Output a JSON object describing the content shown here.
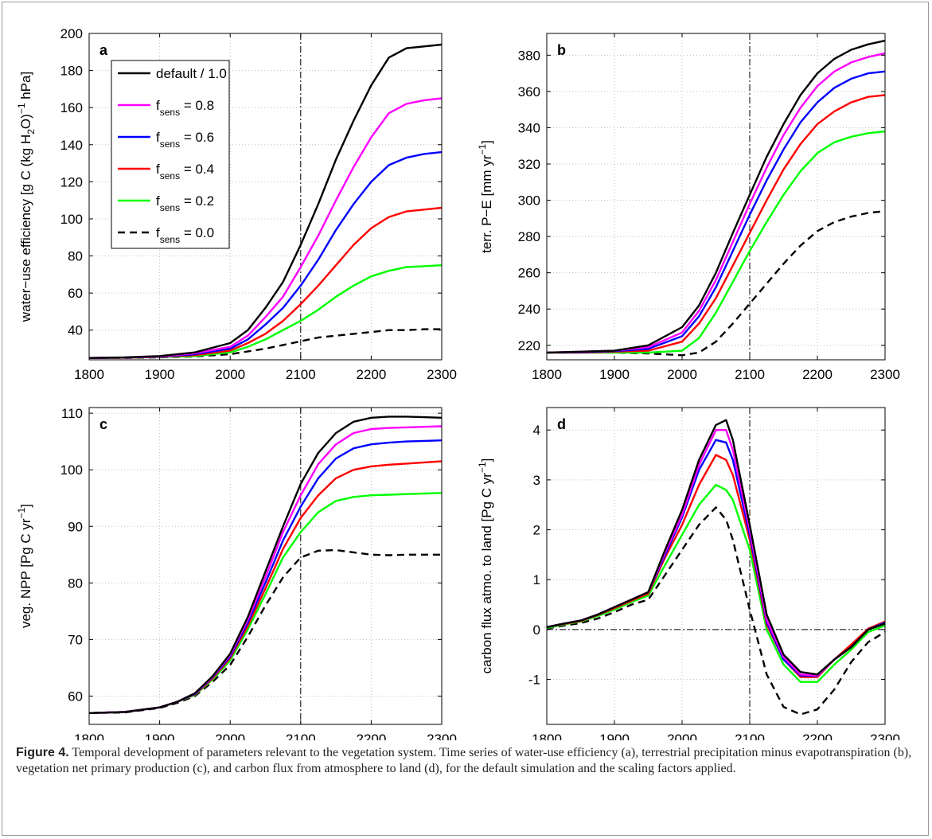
{
  "figure": {
    "caption_label": "Figure 4.",
    "caption_text": "Temporal development of parameters relevant to the vegetation system. Time series of water-use efficiency (a), terrestrial precipitation minus evapotranspiration (b), vegetation net primary production (c), and carbon flux from atmosphere to land (d), for the default simulation and the scaling factors applied."
  },
  "legend": {
    "placement": "top-left of panel a",
    "entries": [
      {
        "label": "default / 1.0",
        "color": "#000000",
        "dash": false
      },
      {
        "label": "f",
        "sub": "sens",
        "rest": " = 0.8",
        "color": "#ff00ff",
        "dash": false
      },
      {
        "label": "f",
        "sub": "sens",
        "rest": " = 0.6",
        "color": "#0000ff",
        "dash": false
      },
      {
        "label": "f",
        "sub": "sens",
        "rest": " = 0.4",
        "color": "#ff0000",
        "dash": false
      },
      {
        "label": "f",
        "sub": "sens",
        "rest": " = 0.2",
        "color": "#00ff00",
        "dash": false
      },
      {
        "label": "f",
        "sub": "sens",
        "rest": " = 0.0",
        "color": "#000000",
        "dash": true
      }
    ]
  },
  "chart_data": [
    {
      "type": "line",
      "panel_label": "a",
      "ylabel_parts": [
        "water−use efficiency [g C (kg H",
        "2",
        "O)",
        "−1",
        " hPa]"
      ],
      "xlim": [
        1800,
        2300
      ],
      "ylim": [
        24,
        200
      ],
      "xticks": [
        1800,
        1900,
        2000,
        2100,
        2200,
        2300
      ],
      "yticks": [
        40,
        60,
        80,
        100,
        120,
        140,
        160,
        180,
        200
      ],
      "grid": true,
      "vline_x": 2100,
      "x": [
        1800,
        1850,
        1900,
        1950,
        2000,
        2025,
        2050,
        2075,
        2100,
        2125,
        2150,
        2175,
        2200,
        2225,
        2250,
        2275,
        2300
      ],
      "series": [
        {
          "name": "default / 1.0",
          "values": [
            25,
            25.3,
            26,
            28,
            33,
            40,
            52,
            66,
            86,
            108,
            132,
            153,
            172,
            187,
            192,
            193,
            194
          ]
        },
        {
          "name": "f sens = 0.8",
          "values": [
            25,
            25.2,
            25.8,
            27.5,
            31,
            37,
            47,
            58,
            74,
            91,
            110,
            128,
            144,
            157,
            162,
            164,
            165
          ]
        },
        {
          "name": "f sens = 0.6",
          "values": [
            25,
            25.2,
            25.7,
            27,
            30,
            35,
            43,
            52,
            64,
            78,
            94,
            108,
            120,
            129,
            133,
            135,
            136
          ]
        },
        {
          "name": "f sens = 0.4",
          "values": [
            25,
            25.1,
            25.6,
            26.5,
            29,
            33,
            38,
            45,
            54,
            64,
            75,
            86,
            95,
            101,
            104,
            105,
            106
          ]
        },
        {
          "name": "f sens = 0.2",
          "values": [
            25,
            25.1,
            25.5,
            26,
            28,
            31,
            35,
            40,
            45,
            51,
            58,
            64,
            69,
            72,
            74,
            74.5,
            75
          ]
        },
        {
          "name": "f sens = 0.0",
          "values": [
            25,
            25,
            25.3,
            25.8,
            27,
            28.5,
            30,
            32,
            34,
            36,
            37,
            38,
            39,
            40,
            40,
            40.5,
            40.5
          ]
        }
      ]
    },
    {
      "type": "line",
      "panel_label": "b",
      "ylabel_parts": [
        "terr. P−E [mm yr",
        "−1",
        "]"
      ],
      "xlim": [
        1800,
        2300
      ],
      "ylim": [
        212,
        392
      ],
      "xticks": [
        1800,
        1900,
        2000,
        2100,
        2200,
        2300
      ],
      "yticks": [
        220,
        240,
        260,
        280,
        300,
        320,
        340,
        360,
        380
      ],
      "grid": true,
      "vline_x": 2100,
      "x": [
        1800,
        1850,
        1900,
        1950,
        2000,
        2025,
        2050,
        2075,
        2100,
        2125,
        2150,
        2175,
        2200,
        2225,
        2250,
        2275,
        2300
      ],
      "series": [
        {
          "name": "default / 1.0",
          "values": [
            216,
            216.5,
            217,
            220,
            230,
            242,
            260,
            282,
            303,
            324,
            342,
            358,
            370,
            378,
            383,
            386,
            388
          ]
        },
        {
          "name": "f sens = 0.8",
          "values": [
            216,
            216.5,
            217,
            219,
            227,
            239,
            256,
            277,
            298,
            318,
            336,
            351,
            363,
            371,
            376,
            379,
            381
          ]
        },
        {
          "name": "f sens = 0.6",
          "values": [
            216,
            216.2,
            216.8,
            218,
            225,
            236,
            252,
            272,
            292,
            311,
            328,
            343,
            354,
            362,
            367,
            370,
            371
          ]
        },
        {
          "name": "f sens = 0.4",
          "values": [
            216,
            216,
            216.5,
            217,
            222,
            232,
            246,
            264,
            282,
            300,
            317,
            331,
            342,
            349,
            354,
            357,
            358
          ]
        },
        {
          "name": "f sens = 0.2",
          "values": [
            216,
            216,
            216,
            216,
            217,
            224,
            238,
            255,
            272,
            288,
            303,
            316,
            326,
            332,
            335,
            337,
            338
          ]
        },
        {
          "name": "f sens = 0.0",
          "values": [
            216,
            216,
            216,
            215.5,
            214.5,
            216,
            222,
            232,
            243,
            254,
            265,
            275,
            283,
            288,
            291,
            293,
            294
          ]
        }
      ]
    },
    {
      "type": "line",
      "panel_label": "c",
      "ylabel_parts": [
        "veg. NPP [Pg C yr",
        "−1",
        "]"
      ],
      "xlim": [
        1800,
        2300
      ],
      "ylim": [
        55,
        111
      ],
      "xticks": [
        1800,
        1900,
        2000,
        2100,
        2200,
        2300
      ],
      "yticks": [
        60,
        70,
        80,
        90,
        100,
        110
      ],
      "grid": true,
      "vline_x": 2100,
      "x": [
        1800,
        1850,
        1900,
        1925,
        1950,
        1975,
        2000,
        2025,
        2050,
        2075,
        2100,
        2125,
        2150,
        2175,
        2200,
        2225,
        2250,
        2275,
        2300
      ],
      "series": [
        {
          "name": "default / 1.0",
          "values": [
            57,
            57.2,
            58,
            59,
            60.5,
            63.5,
            67.5,
            74,
            82,
            90,
            97.5,
            103,
            106.5,
            108.5,
            109.2,
            109.4,
            109.4,
            109.3,
            109.2
          ]
        },
        {
          "name": "f sens = 0.8",
          "values": [
            57,
            57.2,
            58,
            59,
            60.5,
            63.4,
            67.3,
            73.5,
            81,
            89,
            95.5,
            101,
            104.5,
            106.5,
            107.2,
            107.4,
            107.5,
            107.6,
            107.7
          ]
        },
        {
          "name": "f sens = 0.6",
          "values": [
            57,
            57.2,
            58,
            59,
            60.4,
            63.3,
            67,
            73,
            80,
            87.5,
            93.5,
            98.5,
            102,
            103.8,
            104.5,
            104.8,
            105,
            105.1,
            105.2
          ]
        },
        {
          "name": "f sens = 0.4",
          "values": [
            57,
            57.2,
            58,
            59,
            60.3,
            63.1,
            66.7,
            72.4,
            79,
            86,
            91.5,
            95.5,
            98.5,
            100,
            100.6,
            100.9,
            101.1,
            101.3,
            101.5
          ]
        },
        {
          "name": "f sens = 0.2",
          "values": [
            57,
            57.2,
            58,
            59,
            60.2,
            62.9,
            66.3,
            71.8,
            78,
            84.5,
            89,
            92.5,
            94.5,
            95.2,
            95.5,
            95.6,
            95.7,
            95.8,
            95.9
          ]
        },
        {
          "name": "f sens = 0.0",
          "values": [
            57,
            57.1,
            57.9,
            58.8,
            60,
            62.5,
            65.5,
            70.5,
            76,
            81,
            84.5,
            85.7,
            85.8,
            85.4,
            85,
            84.9,
            85,
            85,
            85
          ]
        }
      ]
    },
    {
      "type": "line",
      "panel_label": "d",
      "ylabel_parts": [
        "carbon flux atmo. to land [Pg C yr",
        "−1",
        "]"
      ],
      "xlim": [
        1800,
        2300
      ],
      "ylim": [
        -1.9,
        4.45
      ],
      "xticks": [
        1800,
        1900,
        2000,
        2100,
        2200,
        2300
      ],
      "yticks": [
        -1,
        0,
        1,
        2,
        3,
        4
      ],
      "grid": true,
      "vline_x": 2100,
      "hline_y": 0,
      "x": [
        1800,
        1825,
        1850,
        1875,
        1900,
        1925,
        1950,
        1975,
        2000,
        2025,
        2050,
        2065,
        2075,
        2100,
        2125,
        2150,
        2175,
        2200,
        2225,
        2250,
        2275,
        2300
      ],
      "series": [
        {
          "name": "default / 1.0",
          "values": [
            0.05,
            0.12,
            0.18,
            0.3,
            0.45,
            0.6,
            0.75,
            1.6,
            2.4,
            3.4,
            4.1,
            4.2,
            3.8,
            2.1,
            0.3,
            -0.5,
            -0.85,
            -0.9,
            -0.6,
            -0.35,
            0,
            0.12
          ]
        },
        {
          "name": "f sens = 0.8",
          "values": [
            0.05,
            0.12,
            0.18,
            0.3,
            0.45,
            0.6,
            0.75,
            1.55,
            2.3,
            3.3,
            4.0,
            4.0,
            3.6,
            2.0,
            0.2,
            -0.55,
            -0.9,
            -0.92,
            -0.6,
            -0.35,
            0,
            0.12
          ]
        },
        {
          "name": "f sens = 0.6",
          "values": [
            0.05,
            0.12,
            0.18,
            0.3,
            0.45,
            0.6,
            0.75,
            1.5,
            2.25,
            3.2,
            3.8,
            3.75,
            3.4,
            1.9,
            0.15,
            -0.6,
            -0.92,
            -0.93,
            -0.6,
            -0.35,
            0,
            0.14
          ]
        },
        {
          "name": "f sens = 0.4",
          "values": [
            0.05,
            0.11,
            0.17,
            0.29,
            0.43,
            0.58,
            0.72,
            1.45,
            2.1,
            2.9,
            3.5,
            3.4,
            3.1,
            1.8,
            0.1,
            -0.6,
            -0.95,
            -0.95,
            -0.6,
            -0.3,
            0.02,
            0.16
          ]
        },
        {
          "name": "f sens = 0.2",
          "values": [
            0.03,
            0.1,
            0.16,
            0.27,
            0.4,
            0.55,
            0.68,
            1.3,
            1.9,
            2.5,
            2.9,
            2.8,
            2.6,
            1.6,
            0.0,
            -0.7,
            -1.05,
            -1.05,
            -0.7,
            -0.4,
            -0.05,
            0.08
          ]
        },
        {
          "name": "f sens = 0.0",
          "values": [
            0.02,
            0.08,
            0.13,
            0.22,
            0.35,
            0.5,
            0.6,
            1.1,
            1.6,
            2.1,
            2.45,
            2.2,
            1.8,
            0.4,
            -0.9,
            -1.55,
            -1.7,
            -1.6,
            -1.2,
            -0.65,
            -0.25,
            -0.05
          ]
        }
      ]
    }
  ]
}
